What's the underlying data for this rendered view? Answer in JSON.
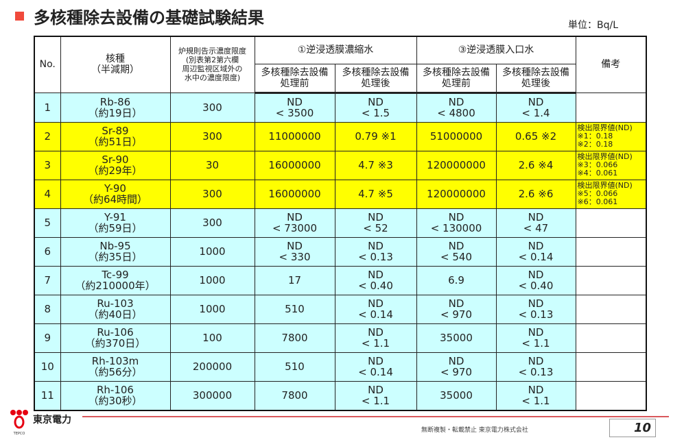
{
  "title": "多核種除去設備の基礎試験結果",
  "unit": "単位：Bq/L",
  "headers": {
    "no": "No.",
    "nuclide": [
      "核種",
      "（半減期）"
    ],
    "limit": [
      "炉規則告示濃度限度",
      "(別表第2第六欄",
      "周辺監視区域外の",
      "水中の濃度限度)"
    ],
    "group1": "①逆浸透膜濃縮水",
    "group2": "③逆浸透膜入口水",
    "remarks": "備考",
    "sub": [
      [
        "多核種除去設備",
        "処理前"
      ],
      [
        "多核種除去設備",
        "処理後"
      ],
      [
        "多核種除去設備",
        "処理前"
      ],
      [
        "多核種除去設備",
        "処理後"
      ]
    ]
  },
  "rows": [
    {
      "no": "1",
      "nuclide": [
        "Rb-86",
        "（約19日）"
      ],
      "limit": "300",
      "c1": [
        "ND",
        "< 3500"
      ],
      "c2": [
        "ND",
        "< 1.5"
      ],
      "c3": [
        "ND",
        "< 4800"
      ],
      "c4": [
        "ND",
        "< 1.4"
      ],
      "note": [],
      "highlight": false
    },
    {
      "no": "2",
      "nuclide": [
        "Sr-89",
        "（約51日）"
      ],
      "limit": "300",
      "c1": [
        "11000000"
      ],
      "c2": [
        "0.79 ※1"
      ],
      "c3": [
        "51000000"
      ],
      "c4": [
        "0.65 ※2"
      ],
      "note": [
        "検出限界値(ND)",
        "※1：0.18",
        "※2：0.18"
      ],
      "highlight": true
    },
    {
      "no": "3",
      "nuclide": [
        "Sr-90",
        "（約29年）"
      ],
      "limit": "30",
      "c1": [
        "16000000"
      ],
      "c2": [
        "4.7 ※3"
      ],
      "c3": [
        "120000000"
      ],
      "c4": [
        "2.6 ※4"
      ],
      "note": [
        "検出限界値(ND)",
        "※3：0.066",
        "※4：0.061"
      ],
      "highlight": true
    },
    {
      "no": "4",
      "nuclide": [
        "Y-90",
        "（約64時間）"
      ],
      "limit": "300",
      "c1": [
        "16000000"
      ],
      "c2": [
        "4.7 ※5"
      ],
      "c3": [
        "120000000"
      ],
      "c4": [
        "2.6 ※6"
      ],
      "note": [
        "検出限界値(ND)",
        "※5：0.066",
        "※6：0.061"
      ],
      "highlight": true
    },
    {
      "no": "5",
      "nuclide": [
        "Y-91",
        "（約59日）"
      ],
      "limit": "300",
      "c1": [
        "ND",
        "< 73000"
      ],
      "c2": [
        "ND",
        "< 52"
      ],
      "c3": [
        "ND",
        "< 130000"
      ],
      "c4": [
        "ND",
        "< 47"
      ],
      "note": [],
      "highlight": false
    },
    {
      "no": "6",
      "nuclide": [
        "Nb-95",
        "（約35日）"
      ],
      "limit": "1000",
      "c1": [
        "ND",
        "< 330"
      ],
      "c2": [
        "ND",
        "< 0.13"
      ],
      "c3": [
        "ND",
        "< 540"
      ],
      "c4": [
        "ND",
        "< 0.14"
      ],
      "note": [],
      "highlight": false
    },
    {
      "no": "7",
      "nuclide": [
        "Tc-99",
        "（約210000年）"
      ],
      "limit": "1000",
      "c1": [
        "17"
      ],
      "c2": [
        "ND",
        "< 0.40"
      ],
      "c3": [
        "6.9"
      ],
      "c4": [
        "ND",
        "< 0.40"
      ],
      "note": [],
      "highlight": false
    },
    {
      "no": "8",
      "nuclide": [
        "Ru-103",
        "（約40日）"
      ],
      "limit": "1000",
      "c1": [
        "510"
      ],
      "c2": [
        "ND",
        "< 0.14"
      ],
      "c3": [
        "ND",
        "< 970"
      ],
      "c4": [
        "ND",
        "< 0.13"
      ],
      "note": [],
      "highlight": false
    },
    {
      "no": "9",
      "nuclide": [
        "Ru-106",
        "（約370日）"
      ],
      "limit": "100",
      "c1": [
        "7800"
      ],
      "c2": [
        "ND",
        "< 1.1"
      ],
      "c3": [
        "35000"
      ],
      "c4": [
        "ND",
        "< 1.1"
      ],
      "note": [],
      "highlight": false
    },
    {
      "no": "10",
      "nuclide": [
        "Rh-103m",
        "（約56分）"
      ],
      "limit": "200000",
      "c1": [
        "510"
      ],
      "c2": [
        "ND",
        "< 0.14"
      ],
      "c3": [
        "ND",
        "< 970"
      ],
      "c4": [
        "ND",
        "< 0.13"
      ],
      "note": [],
      "highlight": false
    },
    {
      "no": "11",
      "nuclide": [
        "Rh-106",
        "（約30秒）"
      ],
      "limit": "300000",
      "c1": [
        "7800"
      ],
      "c2": [
        "ND",
        "< 1.1"
      ],
      "c3": [
        "35000"
      ],
      "c4": [
        "ND",
        "< 1.1"
      ],
      "note": [],
      "highlight": false
    }
  ],
  "footer": {
    "brand": "東京電力",
    "logo_text": "TEPCO",
    "copyright": "無断複製・転載禁止 東京電力株式会社",
    "page": "10"
  },
  "colors": {
    "highlight": "#ffff00",
    "cell": "#ccffff",
    "accent": "#f04a3c"
  }
}
